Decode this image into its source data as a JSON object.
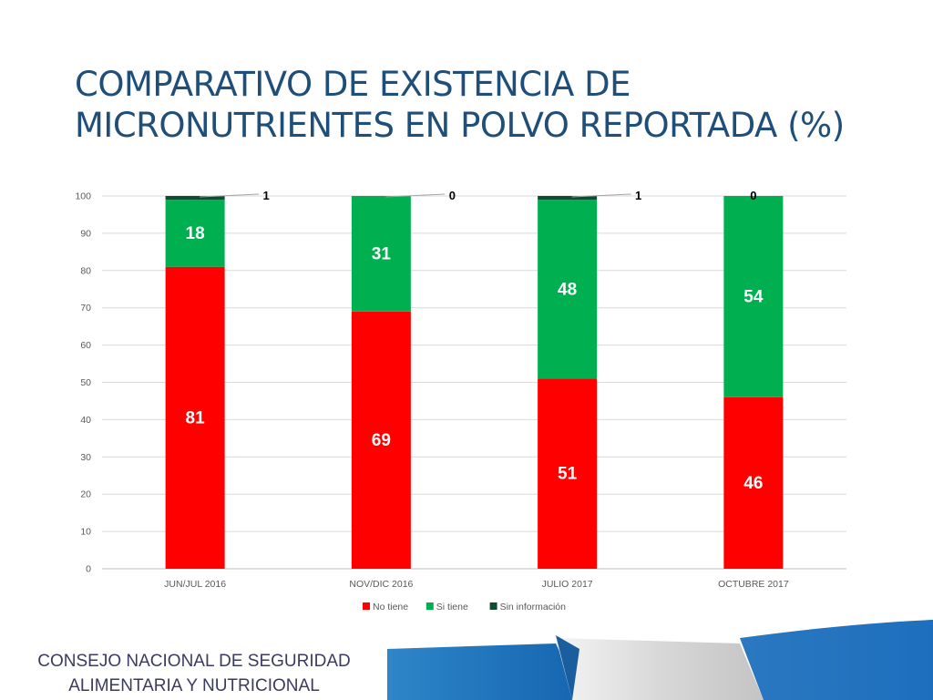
{
  "slide": {
    "title_line1": "COMPARATIVO DE EXISTENCIA DE",
    "title_line2": "MICRONUTRIENTES EN POLVO REPORTADA (%)",
    "footer_line1": "CONSEJO NACIONAL DE SEGURIDAD",
    "footer_line2": "ALIMENTARIA Y NUTRICIONAL"
  },
  "chart_data": {
    "type": "bar",
    "stacked": true,
    "categories": [
      "JUN/JUL 2016",
      "NOV/DIC 2016",
      "JULIO 2017",
      "OCTUBRE 2017"
    ],
    "series": [
      {
        "name": "No tiene",
        "color": "#ff0000",
        "values": [
          81,
          69,
          51,
          46
        ]
      },
      {
        "name": "Si tiene",
        "color": "#00b050",
        "values": [
          18,
          31,
          48,
          54
        ]
      },
      {
        "name": "Sin información",
        "color": "#0f4d32",
        "values": [
          1,
          0,
          1,
          0
        ]
      }
    ],
    "ylim": [
      0,
      100
    ],
    "yticks": [
      0,
      10,
      20,
      30,
      40,
      50,
      60,
      70,
      80,
      90,
      100
    ],
    "grid": true,
    "legend": "bottom"
  }
}
